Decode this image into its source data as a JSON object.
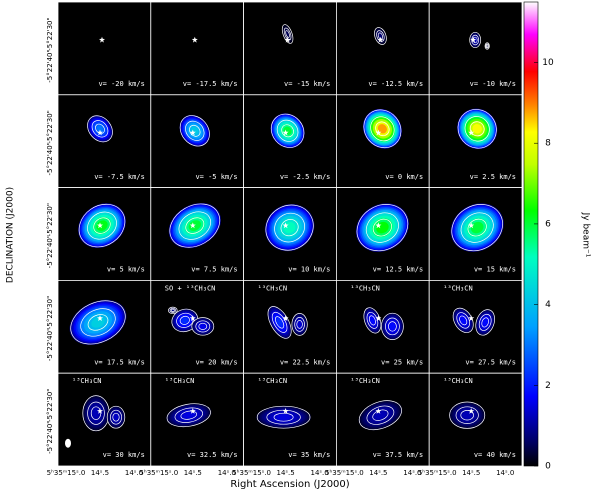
{
  "y_axis_label": "DECLINATION (J2000)",
  "x_axis_label": "Right Ascension (J2000)",
  "y_tick_labels": [
    "-5°22'30\"",
    "-5°22'40\""
  ],
  "x_tick_labels": [
    "5ʰ35ᵐ15ˢ.0",
    "14ˢ.5",
    "14ˢ.0"
  ],
  "colorbar": {
    "label": "Jy beam⁻¹",
    "lim": [
      0,
      11.5
    ],
    "ticks": [
      0,
      2,
      4,
      6,
      8,
      10
    ]
  },
  "panels": [
    {
      "velocity": "v= -20 km/s"
    },
    {
      "velocity": "v= -17.5 km/s"
    },
    {
      "velocity": "v= -15 km/s"
    },
    {
      "velocity": "v= -12.5 km/s"
    },
    {
      "velocity": "v= -10 km/s"
    },
    {
      "velocity": "v= -7.5 km/s"
    },
    {
      "velocity": "v= -5 km/s"
    },
    {
      "velocity": "v= -2.5 km/s"
    },
    {
      "velocity": "v= 0 km/s"
    },
    {
      "velocity": "v= 2.5 km/s"
    },
    {
      "velocity": "v= 5 km/s"
    },
    {
      "velocity": "v= 7.5 km/s"
    },
    {
      "velocity": "v= 10 km/s"
    },
    {
      "velocity": "v= 12.5 km/s"
    },
    {
      "velocity": "v= 15 km/s"
    },
    {
      "velocity": "v= 17.5 km/s"
    },
    {
      "velocity": "v= 20 km/s",
      "line": "SO + ¹³CH₃CN"
    },
    {
      "velocity": "v= 22.5 km/s",
      "line": "¹³CH₃CN"
    },
    {
      "velocity": "v= 25 km/s",
      "line": "¹³CH₃CN"
    },
    {
      "velocity": "v= 27.5 km/s",
      "line": "¹³CH₃CN"
    },
    {
      "velocity": "v= 30 km/s",
      "line": "¹³CH₃CN"
    },
    {
      "velocity": "v= 32.5 km/s",
      "line": "¹³CH₃CN"
    },
    {
      "velocity": "v= 35 km/s",
      "line": "¹³CH₃CN"
    },
    {
      "velocity": "v= 37.5 km/s",
      "line": "¹³CH₃CN"
    },
    {
      "velocity": "v= 40 km/s",
      "line": "¹³CH₃CN"
    }
  ]
}
